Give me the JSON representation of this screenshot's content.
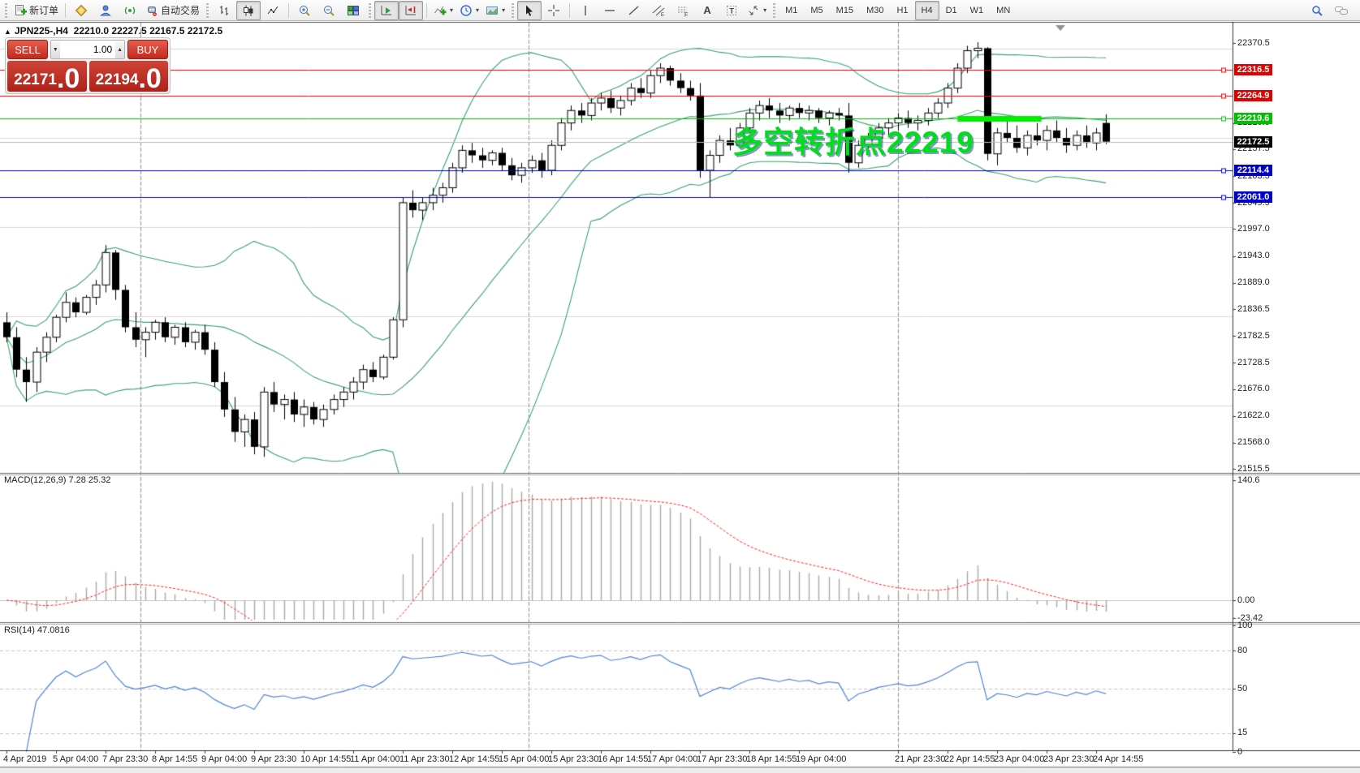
{
  "window": {
    "toggle_glyph": "▲",
    "symbol_period": "JPN225-,H4",
    "ohlc_text": "22210.0 22227.5 22167.5 22172.5"
  },
  "toolbar": {
    "new_order_label": "新订单",
    "autotrading_label": "自动交易",
    "text_tool_label": "A",
    "label_tool_label": "T",
    "timeframes": [
      "M1",
      "M5",
      "M15",
      "M30",
      "H1",
      "H4",
      "D1",
      "W1",
      "MN"
    ],
    "active_timeframe": "H4"
  },
  "one_click": {
    "sell_label": "SELL",
    "buy_label": "BUY",
    "volume": "1.00",
    "sell_price_main": "22171",
    "sell_price_big": ".0",
    "buy_price_main": "22194",
    "buy_price_big": ".0"
  },
  "annotation": {
    "text": "多空转折点22219",
    "color": "#00dd1c"
  },
  "indicators_labels": {
    "macd_label": "MACD(12,26,9) 7.28 25.32",
    "rsi_label": "RSI(14) 47.0816"
  },
  "chart_data": {
    "type": "candlestick",
    "symbol": "JPN225-",
    "timeframe": "H4",
    "current_bar": {
      "open": 22210.0,
      "high": 22227.5,
      "low": 22167.5,
      "close": 22172.5
    },
    "bid": 22171.0,
    "ask": 22194.0,
    "candles": [
      [
        21810,
        21830,
        21770,
        21780
      ],
      [
        21780,
        21800,
        21700,
        21715
      ],
      [
        21715,
        21740,
        21650,
        21690
      ],
      [
        21690,
        21760,
        21670,
        21750
      ],
      [
        21750,
        21790,
        21730,
        21780
      ],
      [
        21780,
        21825,
        21770,
        21820
      ],
      [
        21820,
        21870,
        21810,
        21850
      ],
      [
        21850,
        21860,
        21820,
        21830
      ],
      [
        21830,
        21865,
        21825,
        21860
      ],
      [
        21860,
        21895,
        21845,
        21885
      ],
      [
        21885,
        21965,
        21870,
        21950
      ],
      [
        21950,
        21955,
        21855,
        21875
      ],
      [
        21875,
        21885,
        21790,
        21800
      ],
      [
        21800,
        21830,
        21760,
        21775
      ],
      [
        21775,
        21800,
        21740,
        21790
      ],
      [
        21790,
        21815,
        21775,
        21810
      ],
      [
        21810,
        21820,
        21770,
        21780
      ],
      [
        21780,
        21805,
        21765,
        21800
      ],
      [
        21800,
        21810,
        21760,
        21770
      ],
      [
        21770,
        21795,
        21755,
        21790
      ],
      [
        21790,
        21805,
        21745,
        21755
      ],
      [
        21755,
        21770,
        21680,
        21690
      ],
      [
        21690,
        21710,
        21620,
        21635
      ],
      [
        21635,
        21660,
        21570,
        21590
      ],
      [
        21590,
        21625,
        21560,
        21615
      ],
      [
        21615,
        21630,
        21545,
        21560
      ],
      [
        21560,
        21680,
        21540,
        21670
      ],
      [
        21670,
        21690,
        21630,
        21645
      ],
      [
        21645,
        21665,
        21615,
        21655
      ],
      [
        21655,
        21670,
        21610,
        21625
      ],
      [
        21625,
        21655,
        21600,
        21640
      ],
      [
        21640,
        21650,
        21605,
        21615
      ],
      [
        21615,
        21645,
        21600,
        21635
      ],
      [
        21635,
        21665,
        21625,
        21655
      ],
      [
        21655,
        21680,
        21640,
        21670
      ],
      [
        21670,
        21700,
        21655,
        21690
      ],
      [
        21690,
        21725,
        21675,
        21715
      ],
      [
        21715,
        21730,
        21690,
        21700
      ],
      [
        21700,
        21745,
        21695,
        21740
      ],
      [
        21740,
        21820,
        21735,
        21815
      ],
      [
        21815,
        22060,
        21800,
        22050
      ],
      [
        22050,
        22075,
        22020,
        22035
      ],
      [
        22035,
        22060,
        22015,
        22050
      ],
      [
        22050,
        22080,
        22035,
        22065
      ],
      [
        22065,
        22090,
        22050,
        22080
      ],
      [
        22080,
        22130,
        22070,
        22120
      ],
      [
        22120,
        22165,
        22110,
        22155
      ],
      [
        22155,
        22170,
        22130,
        22145
      ],
      [
        22145,
        22160,
        22120,
        22135
      ],
      [
        22135,
        22155,
        22125,
        22150
      ],
      [
        22150,
        22160,
        22115,
        22125
      ],
      [
        22125,
        22140,
        22095,
        22105
      ],
      [
        22105,
        22130,
        22090,
        22120
      ],
      [
        22120,
        22145,
        22110,
        22135
      ],
      [
        22135,
        22150,
        22100,
        22115
      ],
      [
        22115,
        22175,
        22105,
        22165
      ],
      [
        22165,
        22220,
        22155,
        22210
      ],
      [
        22210,
        22245,
        22195,
        22235
      ],
      [
        22235,
        22250,
        22210,
        22225
      ],
      [
        22225,
        22260,
        22215,
        22250
      ],
      [
        22250,
        22270,
        22235,
        22260
      ],
      [
        22260,
        22275,
        22230,
        22240
      ],
      [
        22240,
        22265,
        22225,
        22255
      ],
      [
        22255,
        22290,
        22245,
        22280
      ],
      [
        22280,
        22300,
        22260,
        22270
      ],
      [
        22270,
        22315,
        22260,
        22305
      ],
      [
        22305,
        22330,
        22290,
        22320
      ],
      [
        22320,
        22325,
        22285,
        22295
      ],
      [
        22295,
        22310,
        22270,
        22280
      ],
      [
        22280,
        22295,
        22255,
        22265
      ],
      [
        22265,
        22290,
        22100,
        22115
      ],
      [
        22115,
        22155,
        22060,
        22145
      ],
      [
        22145,
        22185,
        22130,
        22175
      ],
      [
        22175,
        22200,
        22155,
        22165
      ],
      [
        22165,
        22210,
        22160,
        22200
      ],
      [
        22200,
        22240,
        22190,
        22230
      ],
      [
        22230,
        22255,
        22215,
        22245
      ],
      [
        22245,
        22260,
        22220,
        22235
      ],
      [
        22235,
        22250,
        22210,
        22225
      ],
      [
        22225,
        22245,
        22215,
        22240
      ],
      [
        22240,
        22250,
        22220,
        22230
      ],
      [
        22230,
        22245,
        22215,
        22235
      ],
      [
        22235,
        22240,
        22210,
        22220
      ],
      [
        22220,
        22235,
        22205,
        22230
      ],
      [
        22230,
        22240,
        22215,
        22225
      ],
      [
        22225,
        22250,
        22110,
        22130
      ],
      [
        22130,
        22175,
        22120,
        22165
      ],
      [
        22165,
        22190,
        22150,
        22180
      ],
      [
        22180,
        22210,
        22170,
        22200
      ],
      [
        22200,
        22220,
        22185,
        22210
      ],
      [
        22210,
        22230,
        22195,
        22220
      ],
      [
        22220,
        22235,
        22200,
        22210
      ],
      [
        22210,
        22225,
        22195,
        22215
      ],
      [
        22215,
        22240,
        22205,
        22230
      ],
      [
        22230,
        22260,
        22220,
        22250
      ],
      [
        22250,
        22290,
        22240,
        22280
      ],
      [
        22280,
        22330,
        22270,
        22320
      ],
      [
        22320,
        22365,
        22310,
        22355
      ],
      [
        22355,
        22372,
        22340,
        22360
      ],
      [
        22360,
        22362,
        22135,
        22148
      ],
      [
        22148,
        22200,
        22125,
        22190
      ],
      [
        22190,
        22215,
        22170,
        22180
      ],
      [
        22180,
        22205,
        22150,
        22160
      ],
      [
        22160,
        22195,
        22145,
        22185
      ],
      [
        22185,
        22210,
        22165,
        22175
      ],
      [
        22175,
        22205,
        22155,
        22195
      ],
      [
        22195,
        22215,
        22170,
        22180
      ],
      [
        22180,
        22200,
        22150,
        22165
      ],
      [
        22165,
        22195,
        22155,
        22185
      ],
      [
        22185,
        22205,
        22160,
        22170
      ],
      [
        22170,
        22200,
        22155,
        22190
      ],
      [
        22210,
        22227.5,
        22167.5,
        22172.5
      ]
    ],
    "x_labels": [
      [
        0,
        "4 Apr 2019"
      ],
      [
        5,
        "5 Apr 04:00"
      ],
      [
        10,
        "7 Apr 23:30"
      ],
      [
        15,
        "8 Apr 14:55"
      ],
      [
        20,
        "9 Apr 04:00"
      ],
      [
        25,
        "9 Apr 23:30"
      ],
      [
        30,
        "10 Apr 14:55"
      ],
      [
        35,
        "11 Apr 04:00"
      ],
      [
        40,
        "11 Apr 23:30"
      ],
      [
        45,
        "12 Apr 14:55"
      ],
      [
        50,
        "15 Apr 04:00"
      ],
      [
        55,
        "15 Apr 23:30"
      ],
      [
        60,
        "16 Apr 14:55"
      ],
      [
        65,
        "17 Apr 04:00"
      ],
      [
        70,
        "17 Apr 23:30"
      ],
      [
        75,
        "18 Apr 14:55"
      ],
      [
        80,
        "19 Apr 04:00"
      ],
      [
        90,
        "21 Apr 23:30"
      ],
      [
        95,
        "22 Apr 14:55"
      ],
      [
        100,
        "23 Apr 04:00"
      ],
      [
        105,
        "23 Apr 23:30"
      ],
      [
        110,
        "24 Apr 14:55"
      ]
    ],
    "y_ticks": [
      22370.5,
      22210.0,
      22157.5,
      22103.5,
      22049.5,
      21997.0,
      21943.0,
      21889.0,
      21836.5,
      21782.5,
      21728.5,
      21676.0,
      21622.0,
      21568.0,
      21515.5
    ],
    "levels": [
      {
        "price": 22316.5,
        "line_color": "#f00000",
        "badge_bg": "#e00000",
        "handle": true
      },
      {
        "price": 22264.9,
        "line_color": "#f00000",
        "badge_bg": "#e00000",
        "handle": true
      },
      {
        "price": 22219.6,
        "line_color": "#00b800",
        "badge_bg": "#00c000",
        "handle": true,
        "highlight": {
          "from_bar": 96,
          "to_bar": 104,
          "width": 7,
          "color": "#00ee00"
        }
      },
      {
        "price": 22172.5,
        "line_color": "#bcbcbc",
        "badge_bg": "#000000",
        "handle": false,
        "current": true
      },
      {
        "price": 22114.4,
        "line_color": "#0000d0",
        "badge_bg": "#0000c8",
        "handle": true
      },
      {
        "price": 22061.0,
        "line_color": "#0000d0",
        "badge_bg": "#0000c8",
        "handle": true
      }
    ],
    "week_separators_bar_index": [
      13.5,
      52.7,
      90.0
    ],
    "indicators": {
      "bollinger": {
        "period": 20,
        "deviation": 2,
        "color": "#3aa368"
      },
      "macd": {
        "fast": 12,
        "slow": 26,
        "signal": 9,
        "value": 7.28,
        "signal_value": 25.32,
        "scale_labels": [
          "140.6",
          "0.00",
          "-23.42"
        ],
        "histogram_color": "#a8a8a8",
        "signal_color": "#ff2020"
      },
      "rsi": {
        "period": 14,
        "value": 47.0816,
        "levels": [
          80,
          50,
          15
        ],
        "scale_ticks": [
          100,
          80,
          50,
          15,
          0
        ],
        "color": "#4f86d2"
      }
    }
  }
}
